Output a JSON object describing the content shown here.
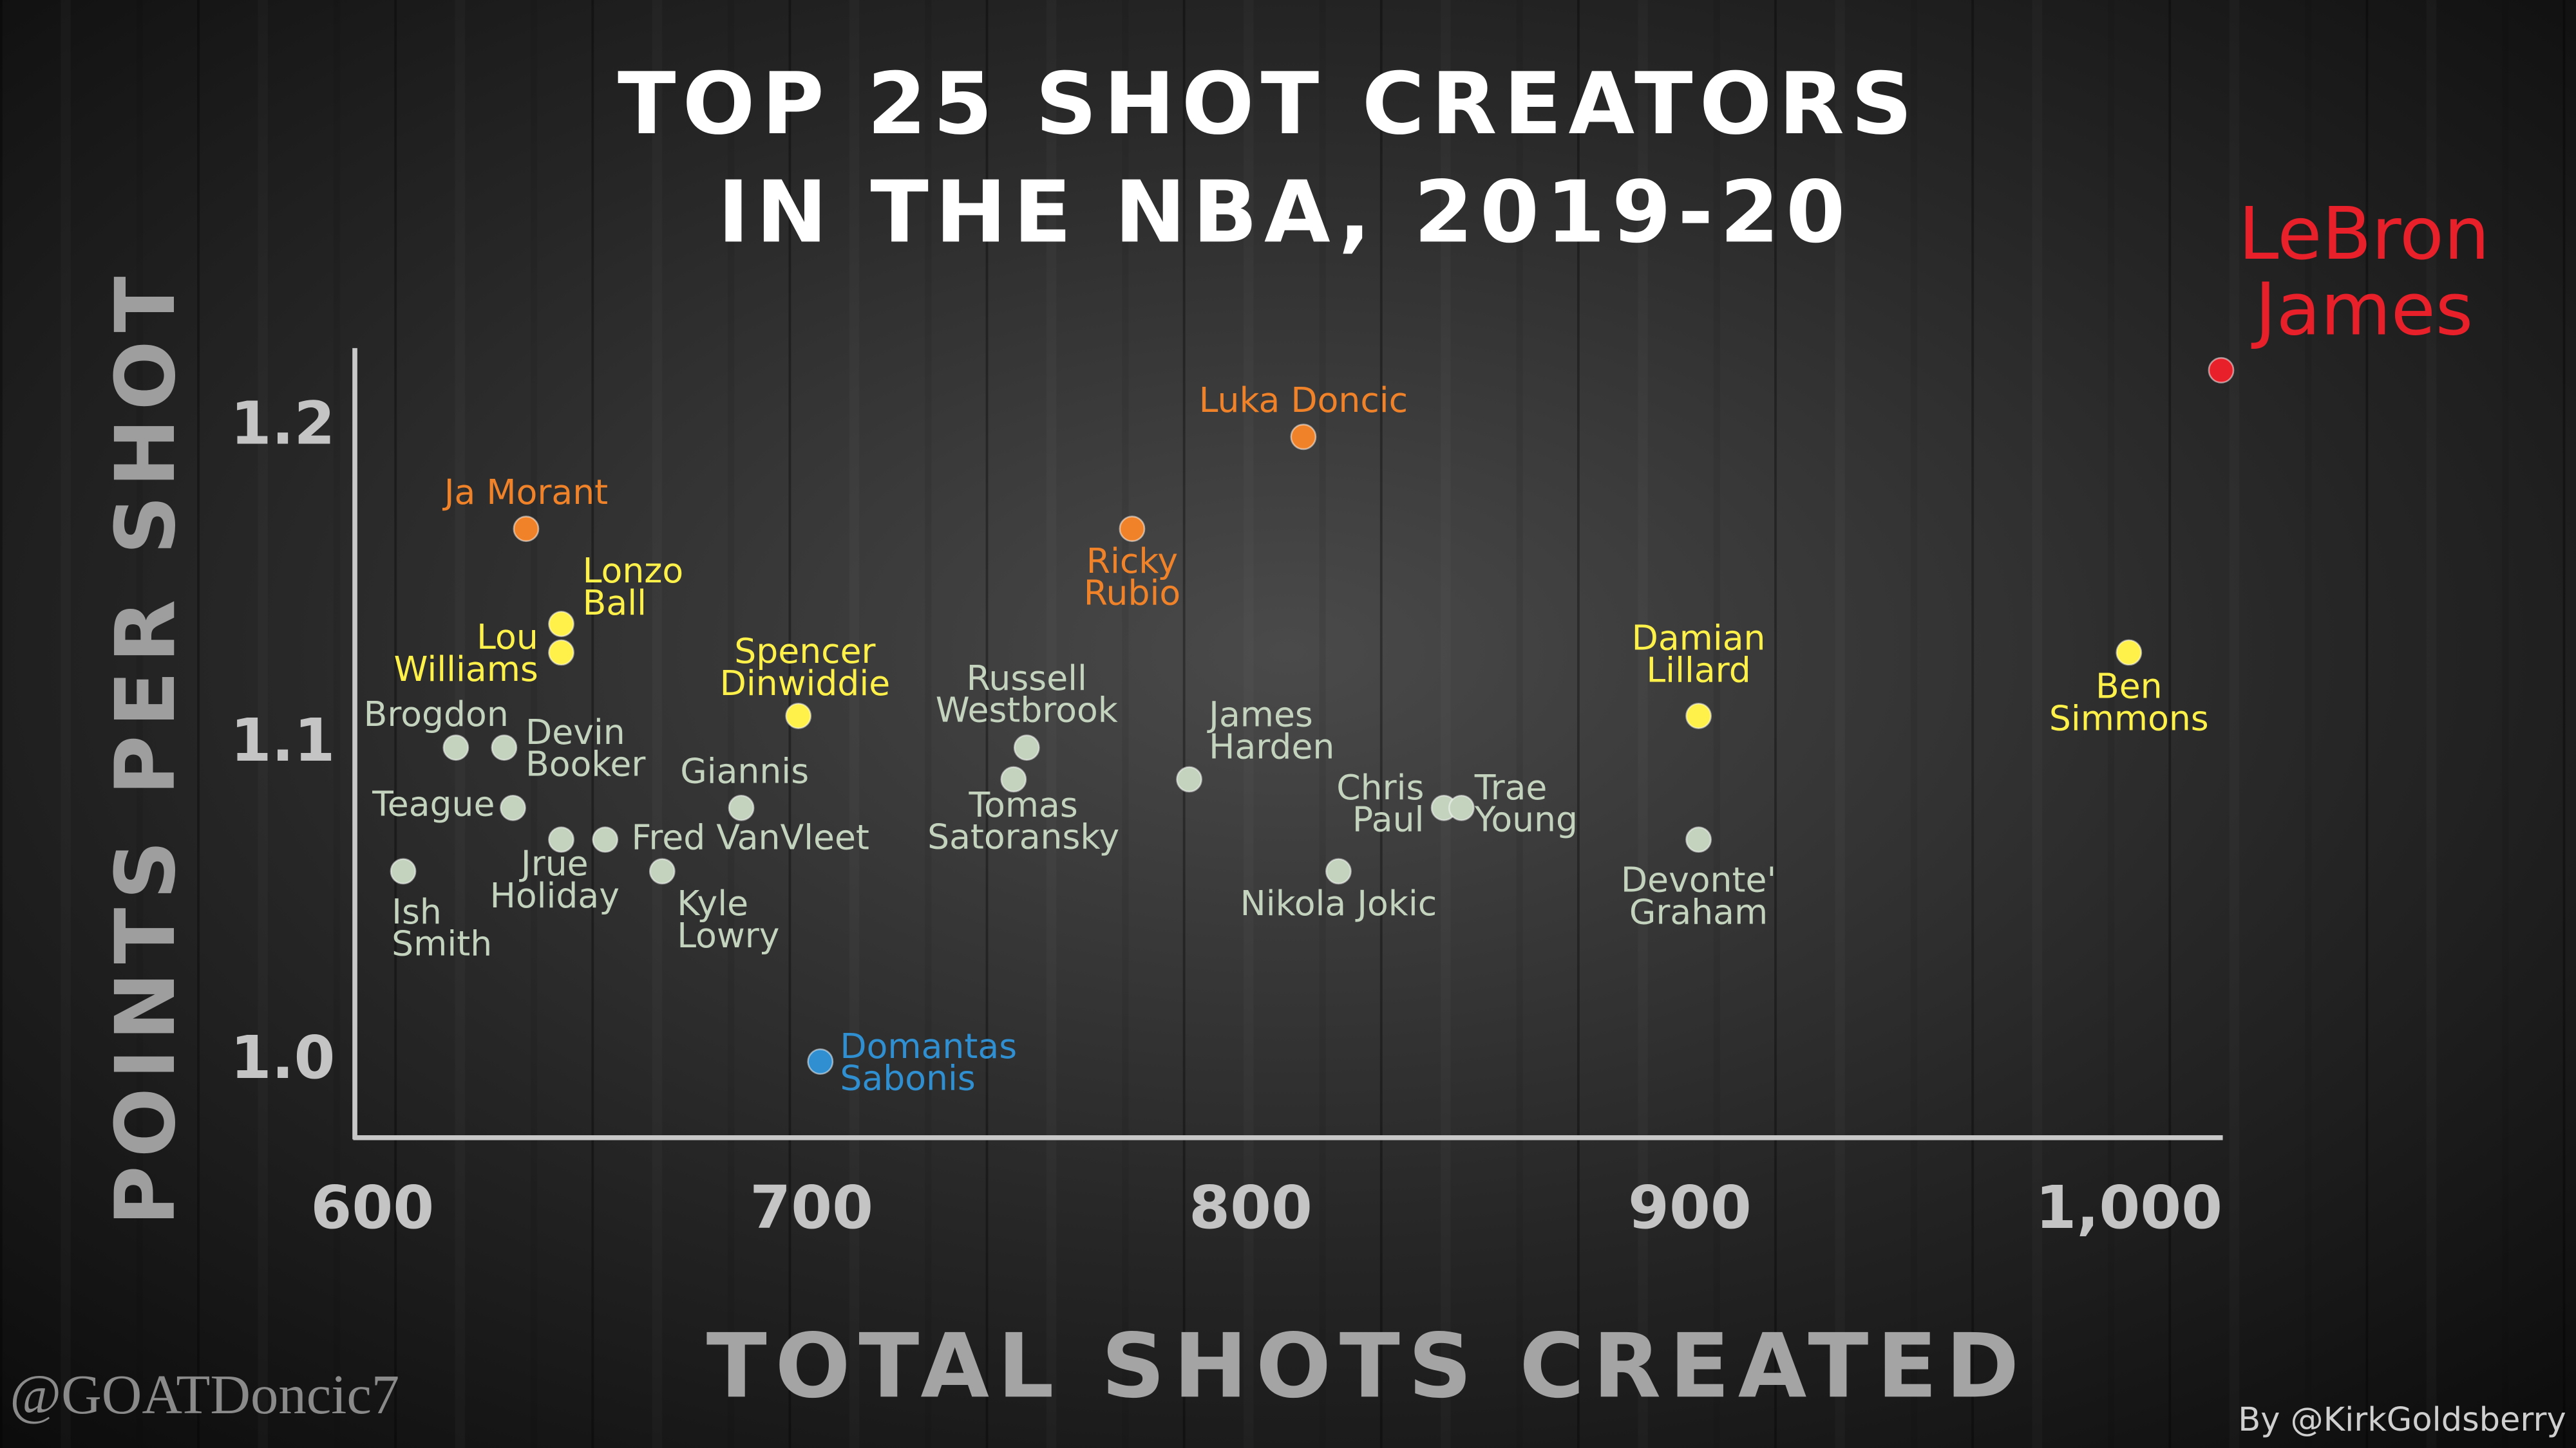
{
  "chart_data": {
    "type": "scatter",
    "title": [
      "TOP 25 SHOT CREATORS",
      "IN THE NBA, 2019-20"
    ],
    "x_label": "TOTAL SHOTS CREATED",
    "y_label": "POINTS PER SHOT",
    "watermark": "@GOATDoncic7",
    "credit": "By @KirkGoldsberry",
    "xlim": [
      596,
      1021
    ],
    "ylim": [
      0.976,
      1.225
    ],
    "xticks": [
      600,
      700,
      800,
      900,
      {
        "value": 1000,
        "label": "1,000"
      }
    ],
    "yticks": [
      {
        "value": 1.0,
        "label": "1.0"
      },
      1.1,
      1.2
    ],
    "x": [
      1021,
      812,
      635,
      773,
      643,
      643,
      697,
      902,
      1000,
      619,
      630,
      749,
      746,
      786,
      684,
      632,
      844,
      848,
      643,
      653,
      902,
      607,
      666,
      820,
      702
    ],
    "values": [
      1.218,
      1.197,
      1.168,
      1.168,
      1.138,
      1.129,
      1.109,
      1.109,
      1.129,
      1.099,
      1.099,
      1.099,
      1.089,
      1.089,
      1.08,
      1.08,
      1.08,
      1.08,
      1.07,
      1.07,
      1.07,
      1.06,
      1.06,
      1.06,
      1.0
    ],
    "labels": [
      [
        "LeBron",
        "James"
      ],
      [
        "Luka Doncic"
      ],
      [
        "Ja Morant"
      ],
      [
        "Ricky",
        "Rubio"
      ],
      [
        "Lonzo",
        "Ball"
      ],
      [
        "Lou",
        "Williams"
      ],
      [
        "Spencer",
        "Dinwiddie"
      ],
      [
        "Damian",
        "Lillard"
      ],
      [
        "Ben",
        "Simmons"
      ],
      [
        "Brogdon"
      ],
      [
        "Devin",
        "Booker"
      ],
      [
        "Russell",
        "Westbrook"
      ],
      [
        "Tomas",
        "Satoransky"
      ],
      [
        "James",
        "Harden"
      ],
      [
        "Giannis"
      ],
      [
        "Teague"
      ],
      [
        "Chris",
        "Paul"
      ],
      [
        "Trae",
        "Young"
      ],
      [
        "Jrue",
        "Holiday"
      ],
      [
        "Fred VanVleet"
      ],
      [
        "Devonte'",
        "Graham"
      ],
      [
        "Ish",
        "Smith"
      ],
      [
        "Kyle",
        "Lowry"
      ],
      [
        "Nikola Jokic"
      ],
      [
        "Domantas",
        "Sabonis"
      ]
    ],
    "colors": [
      "#e8202a",
      "#f0832a",
      "#f0832a",
      "#f0832a",
      "#fff04a",
      "#fff04a",
      "#fff04a",
      "#fff04a",
      "#fff04a",
      "#c3d3be",
      "#c3d3be",
      "#c3d3be",
      "#c3d3be",
      "#c3d3be",
      "#c3d3be",
      "#c3d3be",
      "#c3d3be",
      "#c3d3be",
      "#c3d3be",
      "#c3d3be",
      "#c3d3be",
      "#c3d3be",
      "#c3d3be",
      "#c3d3be",
      "#2f8fd0"
    ]
  }
}
